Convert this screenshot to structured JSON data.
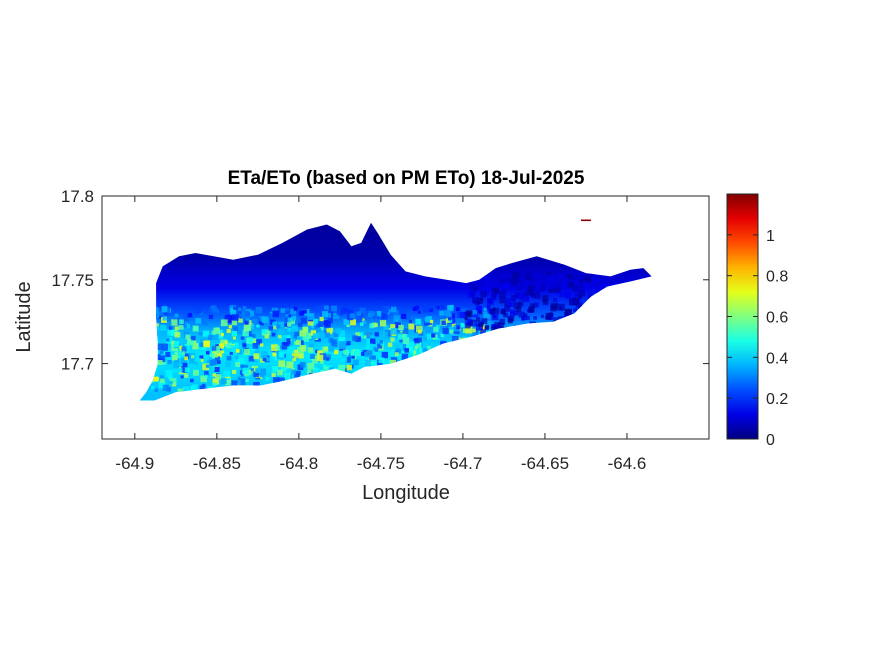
{
  "chart_data": {
    "type": "heatmap",
    "title": "ETa/ETo (based on PM ETo) 18-Jul-2025",
    "xlabel": "Longitude",
    "ylabel": "Latitude",
    "xlim": [
      -64.92,
      -64.55
    ],
    "ylim": [
      17.655,
      17.8
    ],
    "x_ticks": [
      -64.9,
      -64.85,
      -64.8,
      -64.75,
      -64.7,
      -64.65,
      -64.6
    ],
    "x_tick_labels": [
      "-64.9",
      "-64.85",
      "-64.8",
      "-64.75",
      "-64.7",
      "-64.65",
      "-64.6"
    ],
    "y_ticks": [
      17.7,
      17.75,
      17.8
    ],
    "y_tick_labels": [
      "17.7",
      "17.75",
      "17.8"
    ],
    "colorbar": {
      "colormap": "jet",
      "range": [
        0,
        1.2
      ],
      "ticks": [
        0,
        0.2,
        0.4,
        0.6,
        0.8,
        1
      ],
      "tick_labels": [
        "0",
        "0.2",
        "0.4",
        "0.6",
        "0.8",
        "1"
      ]
    },
    "region_outline": [
      [
        -64.897,
        17.678
      ],
      [
        -64.893,
        17.683
      ],
      [
        -64.889,
        17.69
      ],
      [
        -64.886,
        17.7
      ],
      [
        -64.886,
        17.712
      ],
      [
        -64.887,
        17.728
      ],
      [
        -64.887,
        17.748
      ],
      [
        -64.883,
        17.758
      ],
      [
        -64.873,
        17.764
      ],
      [
        -64.863,
        17.766
      ],
      [
        -64.852,
        17.764
      ],
      [
        -64.84,
        17.762
      ],
      [
        -64.825,
        17.765
      ],
      [
        -64.81,
        17.772
      ],
      [
        -64.795,
        17.78
      ],
      [
        -64.783,
        17.783
      ],
      [
        -64.775,
        17.779
      ],
      [
        -64.768,
        17.77
      ],
      [
        -64.762,
        17.772
      ],
      [
        -64.756,
        17.784
      ],
      [
        -64.752,
        17.778
      ],
      [
        -64.744,
        17.765
      ],
      [
        -64.735,
        17.755
      ],
      [
        -64.723,
        17.752
      ],
      [
        -64.71,
        17.75
      ],
      [
        -64.698,
        17.748
      ],
      [
        -64.69,
        17.75
      ],
      [
        -64.68,
        17.757
      ],
      [
        -64.67,
        17.76
      ],
      [
        -64.655,
        17.764
      ],
      [
        -64.638,
        17.759
      ],
      [
        -64.625,
        17.754
      ],
      [
        -64.61,
        17.752
      ],
      [
        -64.598,
        17.756
      ],
      [
        -64.59,
        17.757
      ],
      [
        -64.585,
        17.752
      ],
      [
        -64.598,
        17.749
      ],
      [
        -64.612,
        17.746
      ],
      [
        -64.622,
        17.74
      ],
      [
        -64.632,
        17.73
      ],
      [
        -64.645,
        17.725
      ],
      [
        -64.66,
        17.724
      ],
      [
        -64.678,
        17.721
      ],
      [
        -64.695,
        17.716
      ],
      [
        -64.712,
        17.712
      ],
      [
        -64.728,
        17.705
      ],
      [
        -64.744,
        17.7
      ],
      [
        -64.76,
        17.698
      ],
      [
        -64.768,
        17.694
      ],
      [
        -64.778,
        17.697
      ],
      [
        -64.792,
        17.694
      ],
      [
        -64.808,
        17.69
      ],
      [
        -64.823,
        17.687
      ],
      [
        -64.84,
        17.687
      ],
      [
        -64.858,
        17.685
      ],
      [
        -64.875,
        17.683
      ],
      [
        -64.888,
        17.678
      ]
    ],
    "islet": [
      [
        -64.628,
        17.785
      ],
      [
        -64.622,
        17.785
      ],
      [
        -64.622,
        17.786
      ],
      [
        -64.628,
        17.786
      ]
    ]
  }
}
